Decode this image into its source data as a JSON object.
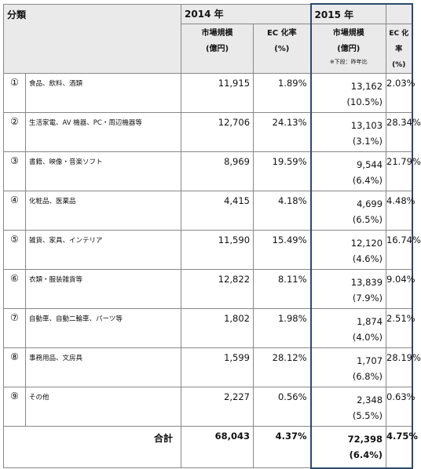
{
  "header": {
    "category": "分類",
    "year_2014": "2014 年",
    "year_2015": "2015 年",
    "market_size_line1": "市場規模",
    "market_size_line2": "(億円)",
    "ec_rate_line1": "EC 化率",
    "ec_rate_line2": "(%)",
    "note_2015": "※下段：昨年比"
  },
  "rows": [
    {
      "num": "①",
      "name": "食品、飲料、酒類",
      "m2014": "11,915",
      "ec2014": "1.89%",
      "m2015": "13,162",
      "yoy": "(10.5%)",
      "ec2015": "2.03%"
    },
    {
      "num": "②",
      "name": "生活家電、AV 機器、PC・周辺機器等",
      "m2014": "12,706",
      "ec2014": "24.13%",
      "m2015": "13,103",
      "yoy": "(3.1%)",
      "ec2015": "28.34%"
    },
    {
      "num": "③",
      "name": "書籍、映像・音楽ソフト",
      "m2014": "8,969",
      "ec2014": "19.59%",
      "m2015": "9,544",
      "yoy": "(6.4%)",
      "ec2015": "21.79%"
    },
    {
      "num": "④",
      "name": "化粧品、医薬品",
      "m2014": "4,415",
      "ec2014": "4.18%",
      "m2015": "4,699",
      "yoy": "(6.5%)",
      "ec2015": "4.48%"
    },
    {
      "num": "⑤",
      "name": "雑貨、家具、インテリア",
      "m2014": "11,590",
      "ec2014": "15.49%",
      "m2015": "12,120",
      "yoy": "(4.6%)",
      "ec2015": "16.74%"
    },
    {
      "num": "⑥",
      "name": "衣類・服装雑貨等",
      "m2014": "12,822",
      "ec2014": "8.11%",
      "m2015": "13,839",
      "yoy": "(7.9%)",
      "ec2015": "9.04%"
    },
    {
      "num": "⑦",
      "name": "自動車、自動二輪車、パーツ等",
      "m2014": "1,802",
      "ec2014": "1.98%",
      "m2015": "1,874",
      "yoy": "(4.0%)",
      "ec2015": "2.51%"
    },
    {
      "num": "⑧",
      "name": "事務用品、文房具",
      "m2014": "1,599",
      "ec2014": "28.12%",
      "m2015": "1,707",
      "yoy": "(6.8%)",
      "ec2015": "28.19%"
    },
    {
      "num": "⑨",
      "name": "その他",
      "m2014": "2,227",
      "ec2014": "0.56%",
      "m2015": "2,348",
      "yoy": "(5.5%)",
      "ec2015": "0.63%"
    }
  ],
  "total": {
    "label": "合計",
    "m2014": "68,043",
    "ec2014": "4.37%",
    "m2015": "72,398",
    "yoy": "(6.4%)",
    "ec2015": "4.75%"
  },
  "colors": {
    "header_bg": "#eaeaea",
    "highlight_border": "#2c4a6a"
  }
}
